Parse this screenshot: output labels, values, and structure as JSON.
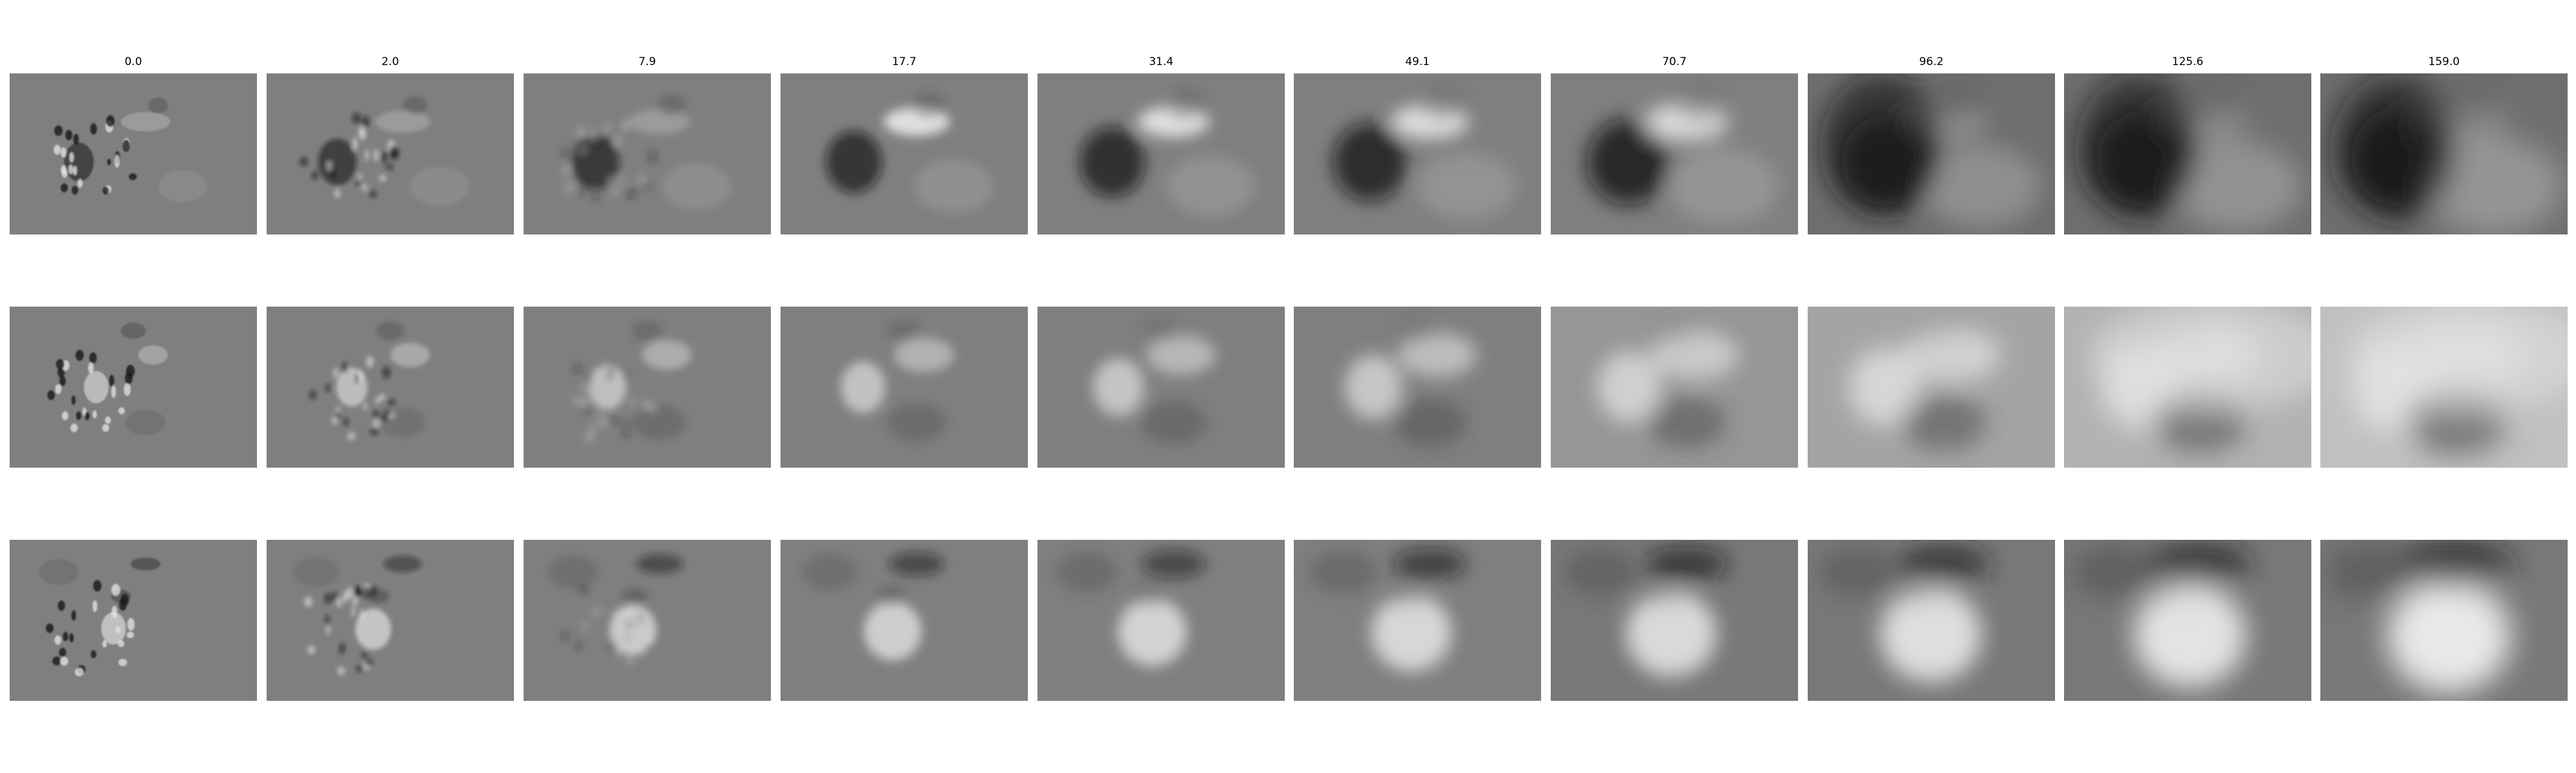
{
  "column_titles": [
    "0.0",
    "2.0",
    "7.9",
    "17.7",
    "31.4",
    "49.1",
    "70.7",
    "96.2",
    "125.6",
    "159.0"
  ],
  "rows": 3,
  "colormap": "gray",
  "background": "#ffffff"
}
